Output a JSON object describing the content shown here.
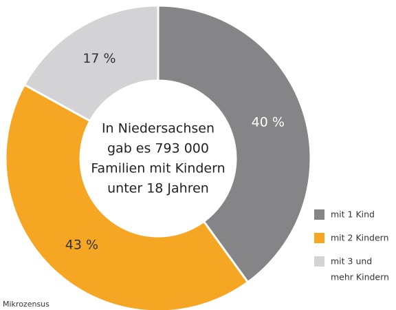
{
  "chart_data": {
    "type": "donut",
    "center_text": [
      "In Niedersachsen",
      "gab es 793 000",
      "Familien mit Kindern",
      "unter 18 Jahren"
    ],
    "categories": [
      "mit 1 Kind",
      "mit 2 Kindern",
      "mit 3 und mehr Kindern"
    ],
    "legend_lines": [
      [
        "mit 1 Kind"
      ],
      [
        "mit 2 Kindern"
      ],
      [
        "mit 3 und",
        "mehr Kindern"
      ]
    ],
    "values": [
      40,
      43,
      17
    ],
    "value_labels": [
      "40 %",
      "43 %",
      "17 %"
    ],
    "colors": [
      "#858588",
      "#f5a623",
      "#d3d3d5"
    ],
    "source": "Mikrozensus"
  }
}
